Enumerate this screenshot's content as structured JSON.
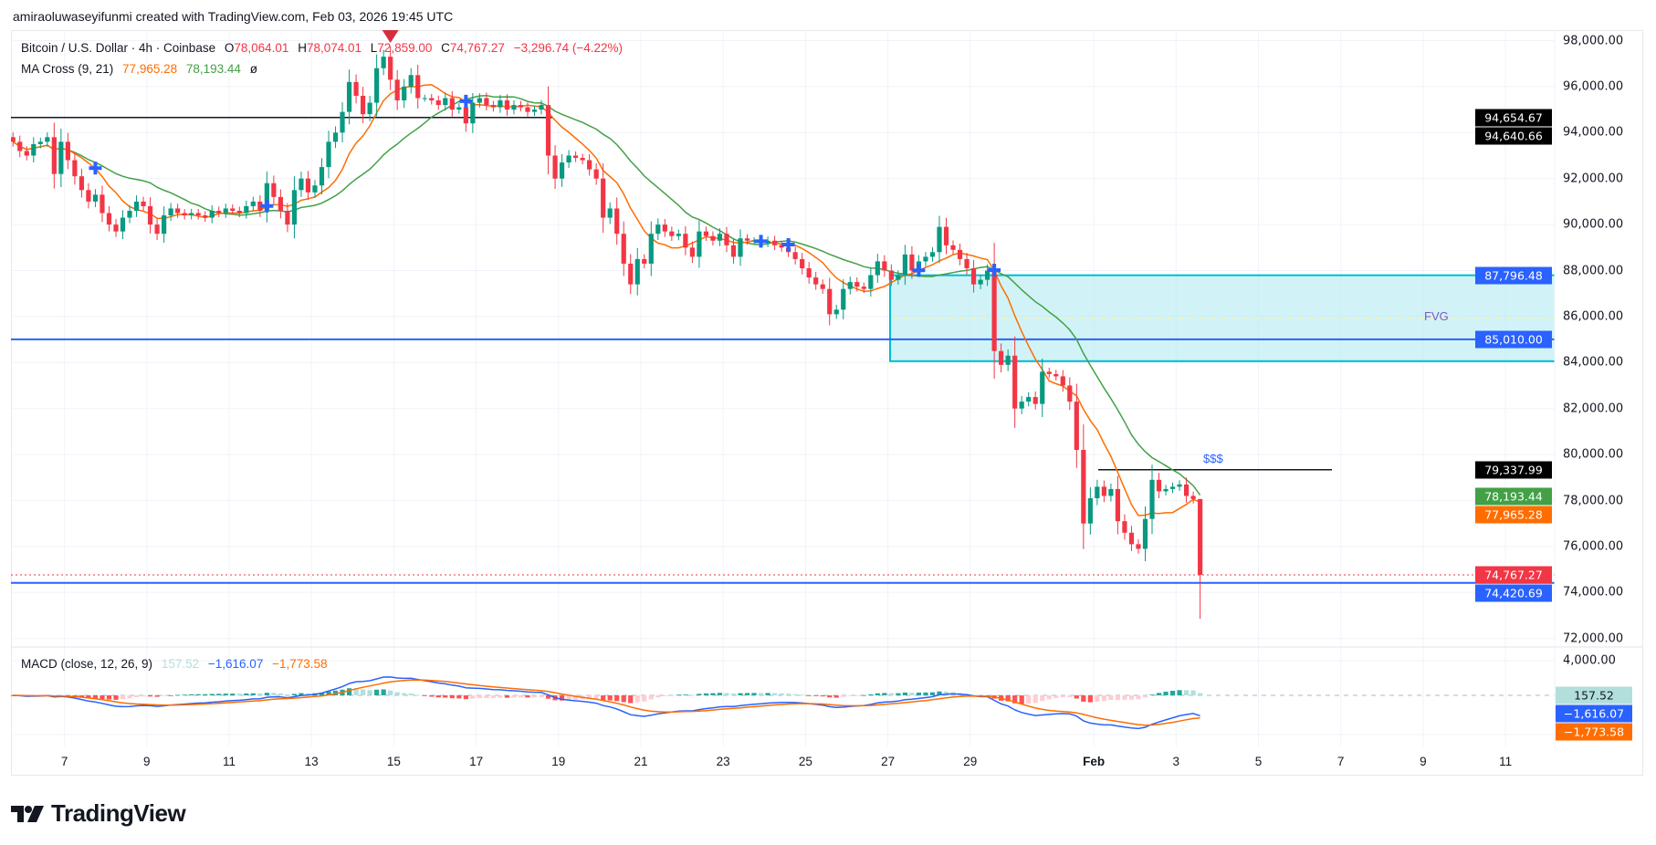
{
  "header": {
    "attribution": "amiraoluwaseyifunmi created with TradingView.com, Feb 03, 2026 19:45 UTC"
  },
  "legend": {
    "symbol": "Bitcoin / U.S. Dollar · 4h · Coinbase",
    "o_label": "O",
    "o": "78,064.01",
    "h_label": "H",
    "h": "78,074.01",
    "l_label": "L",
    "l": "72,859.00",
    "c_label": "C",
    "c": "74,767.27",
    "change": "−3,296.74 (−4.22%)"
  },
  "ma": {
    "name": "MA Cross (9, 21)",
    "fast": "77,965.28",
    "slow": "78,193.44",
    "extra": "ø"
  },
  "macd": {
    "name": "MACD (close, 12, 26, 9)",
    "hist": "157.52",
    "macd": "−1,616.07",
    "signal": "−1,773.58"
  },
  "price_axis": [
    "98,000.00",
    "96,000.00",
    "94,000.00",
    "92,000.00",
    "90,000.00",
    "88,000.00",
    "86,000.00",
    "84,000.00",
    "82,000.00",
    "80,000.00",
    "78,000.00",
    "76,000.00",
    "74,000.00",
    "72,000.00"
  ],
  "macd_axis": [
    "4,000.00"
  ],
  "price_tags": [
    {
      "text": "94,654.67",
      "value": 94654.67,
      "bg": "#000000",
      "fg": "#ffffff"
    },
    {
      "text": "94,640.66",
      "value": 94640.66,
      "bg": "#000000",
      "fg": "#ffffff"
    },
    {
      "text": "87,796.48",
      "value": 87796.48,
      "bg": "#2962ff",
      "fg": "#ffffff"
    },
    {
      "text": "85,010.00",
      "value": 85010.0,
      "bg": "#2962ff",
      "fg": "#ffffff"
    },
    {
      "text": "79,337.99",
      "value": 79337.99,
      "bg": "#000000",
      "fg": "#ffffff"
    },
    {
      "text": "78,193.44",
      "value": 78193.44,
      "bg": "#43a047",
      "fg": "#ffffff"
    },
    {
      "text": "77,965.28",
      "value": 77965.28,
      "bg": "#ff6d00",
      "fg": "#ffffff"
    },
    {
      "text": "74,767.27",
      "value": 74767.27,
      "bg": "#f23645",
      "fg": "#ffffff"
    },
    {
      "text": "74,420.69",
      "value": 74420.69,
      "bg": "#2962ff",
      "fg": "#ffffff"
    }
  ],
  "macd_tags": [
    {
      "text": "157.52",
      "value": 157.52,
      "bg": "#b2dfdb",
      "fg": "#131722"
    },
    {
      "text": "−1,616.07",
      "value": -1616.07,
      "bg": "#2962ff",
      "fg": "#ffffff"
    },
    {
      "text": "−1,773.58",
      "value": -1773.58,
      "bg": "#ff6d00",
      "fg": "#ffffff"
    }
  ],
  "x_axis": [
    "7",
    "9",
    "11",
    "13",
    "15",
    "17",
    "19",
    "21",
    "23",
    "25",
    "27",
    "29",
    "Feb",
    "3",
    "5",
    "7",
    "9",
    "11"
  ],
  "annotations": {
    "fvg": {
      "label": "FVG",
      "top": 87796.48,
      "bottom": 84060
    },
    "liquidity": {
      "label": "$$$",
      "price": 79337.99
    },
    "resistance": {
      "price": 94654.67
    },
    "support_lines": [
      85010.0,
      74420.69
    ],
    "last_price": 74767.27
  },
  "logo": {
    "text": "TradingView"
  },
  "colors": {
    "up": "#089981",
    "down": "#f23645",
    "ma_fast": "#ff6d00",
    "ma_slow": "#43a047",
    "macd": "#2962ff",
    "signal": "#ff6d00",
    "line_blue": "#2962ff",
    "fvg_border": "#00bcd4",
    "fvg_fill": "#b2ebf2"
  },
  "chart_data": {
    "type": "candlestick",
    "interval": "4h",
    "ylim": [
      72000,
      98000
    ],
    "grid": true,
    "closes": [
      93600,
      93200,
      93000,
      93500,
      93600,
      93800,
      92200,
      93600,
      92800,
      92100,
      91500,
      91000,
      91300,
      90500,
      90000,
      89700,
      90300,
      90600,
      91000,
      90800,
      90000,
      89600,
      90400,
      90700,
      90500,
      90400,
      90500,
      90400,
      90300,
      90600,
      90500,
      90700,
      90600,
      90500,
      90800,
      91000,
      90600,
      91800,
      91200,
      90600,
      90000,
      91500,
      92000,
      91400,
      91700,
      92500,
      93600,
      94000,
      94900,
      96200,
      95600,
      94800,
      95300,
      96800,
      97300,
      96300,
      95400,
      96000,
      96500,
      95500,
      95500,
      95400,
      95200,
      95500,
      95000,
      95100,
      94400,
      95300,
      95500,
      95200,
      95100,
      95400,
      95000,
      95200,
      95100,
      94900,
      95000,
      95200,
      93000,
      92000,
      92700,
      93000,
      92900,
      92800,
      92400,
      92000,
      90300,
      90700,
      89600,
      88300,
      87400,
      88500,
      88300,
      89600,
      90000,
      89700,
      89500,
      89600,
      89000,
      88600,
      89700,
      89500,
      89300,
      89600,
      89100,
      88600,
      89400,
      89300,
      89300,
      89200,
      89300,
      89100,
      89000,
      88800,
      88500,
      88100,
      87700,
      87400,
      87200,
      86100,
      86300,
      87200,
      87500,
      87300,
      87200,
      87800,
      88400,
      88000,
      87600,
      87800,
      88700,
      88000,
      88400,
      88600,
      88800,
      89900,
      89100,
      88900,
      88500,
      88100,
      87400,
      87600,
      88000,
      84500,
      83900,
      84300,
      82000,
      82300,
      82500,
      82200,
      83600,
      83500,
      83400,
      83000,
      82300,
      80200,
      77000,
      78100,
      78600,
      78200,
      78500,
      77100,
      76600,
      76100,
      75900,
      77200,
      78900,
      78400,
      78500,
      78600,
      78700,
      78200,
      78064.01,
      74767.27
    ],
    "last_candle": {
      "open": 78064.01,
      "high": 78074.01,
      "low": 72859.0,
      "close": 74767.27
    },
    "indicators": [
      "MA Cross (9, 21)",
      "MACD (close, 12, 26, 9)"
    ]
  }
}
